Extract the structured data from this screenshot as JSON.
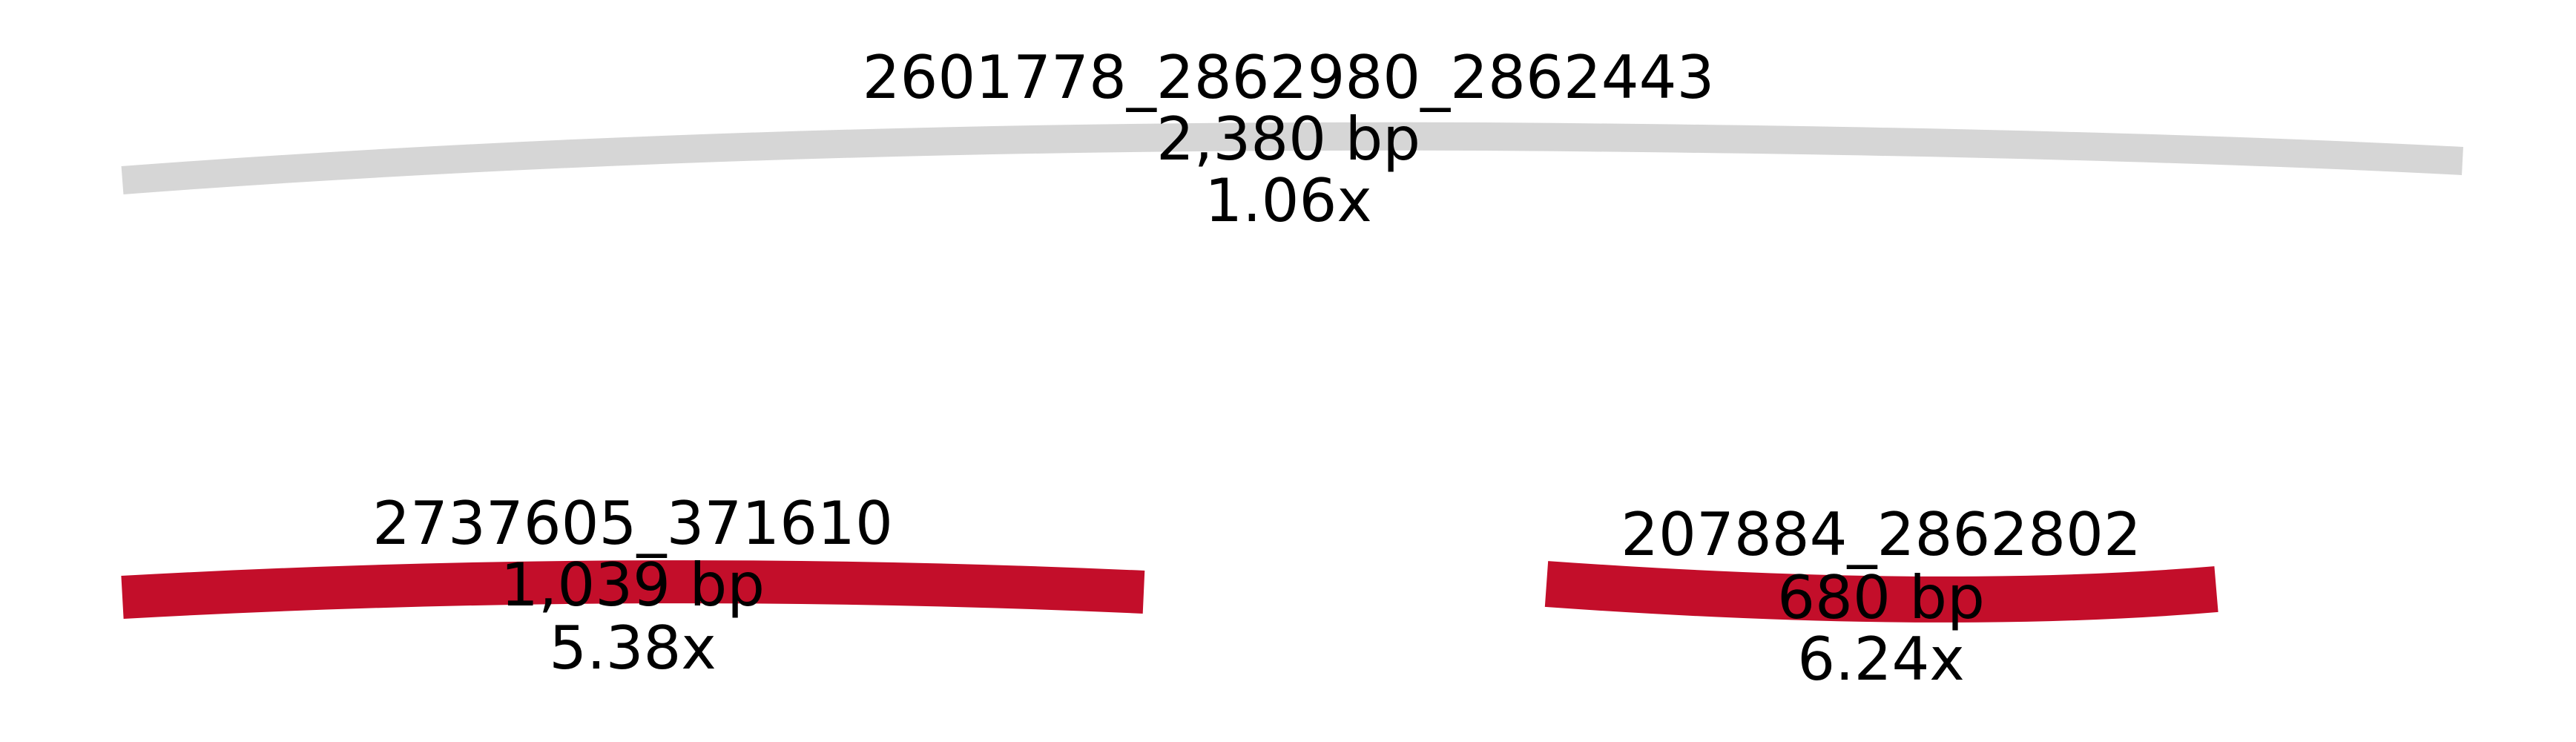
{
  "segments": [
    {
      "id": "2601778_2862980_2862443",
      "name": "2601778_2862980_2862443",
      "length": "2,380 bp",
      "depth": "1.06x",
      "color": "#d6d6d6"
    },
    {
      "id": "2737605_371610",
      "name": "2737605_371610",
      "length": "1,039 bp",
      "depth": "5.38x",
      "color": "#c30e2a"
    },
    {
      "id": "207884_2862802",
      "name": "207884_2862802",
      "length": "680 bp",
      "depth": "6.24x",
      "color": "#c30e2a"
    }
  ]
}
